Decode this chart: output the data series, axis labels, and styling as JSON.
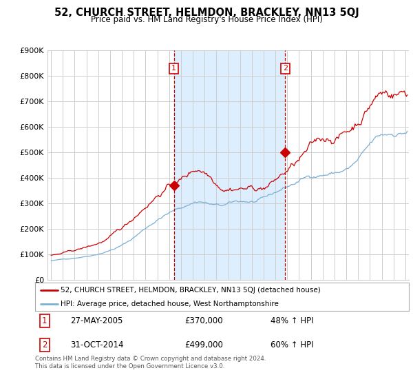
{
  "title": "52, CHURCH STREET, HELMDON, BRACKLEY, NN13 5QJ",
  "subtitle": "Price paid vs. HM Land Registry's House Price Index (HPI)",
  "red_label": "52, CHURCH STREET, HELMDON, BRACKLEY, NN13 5QJ (detached house)",
  "blue_label": "HPI: Average price, detached house, West Northamptonshire",
  "footer": "Contains HM Land Registry data © Crown copyright and database right 2024.\nThis data is licensed under the Open Government Licence v3.0.",
  "sale1_date": "27-MAY-2005",
  "sale1_price": "£370,000",
  "sale1_hpi": "48% ↑ HPI",
  "sale2_date": "31-OCT-2014",
  "sale2_price": "£499,000",
  "sale2_hpi": "60% ↑ HPI",
  "ylabel_ticks": [
    "£0",
    "£100K",
    "£200K",
    "£300K",
    "£400K",
    "£500K",
    "£600K",
    "£700K",
    "£800K",
    "£900K"
  ],
  "ytick_vals": [
    0,
    100000,
    200000,
    300000,
    400000,
    500000,
    600000,
    700000,
    800000,
    900000
  ],
  "red_color": "#cc0000",
  "blue_color": "#7bafd4",
  "shade_color": "#ddeeff",
  "vline_color": "#cc0000",
  "grid_color": "#cccccc",
  "bg_color": "#ffffff",
  "sale1_year_f": 2005.4,
  "sale1_val": 370000,
  "sale2_year_f": 2014.83,
  "sale2_val": 499000,
  "xmin": 1995.0,
  "xmax": 2025.0,
  "ymin": 0,
  "ymax": 900000
}
